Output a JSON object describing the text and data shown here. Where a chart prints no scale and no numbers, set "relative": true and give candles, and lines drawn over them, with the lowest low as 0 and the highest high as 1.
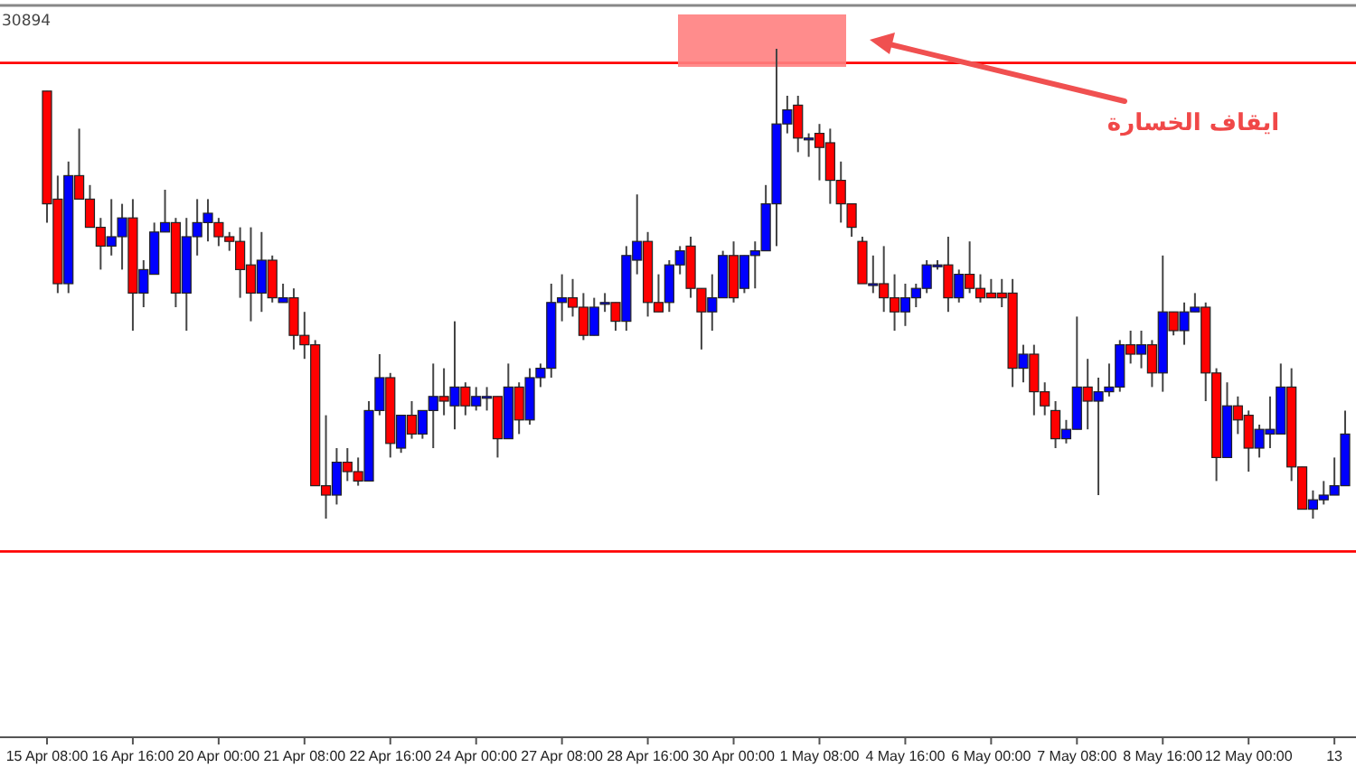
{
  "chart_data": {
    "type": "candlestick",
    "relative": true,
    "tick_labels": "x",
    "annotations": [
      "30894",
      "ايقاف الخسارة"
    ],
    "ref_lines": [
      {
        "axis": "y",
        "value": 0.97,
        "color": "#ff0000",
        "line_style": "solid"
      },
      {
        "axis": "y",
        "value": -0.07,
        "color": "#ff0000",
        "line_style": "solid"
      }
    ],
    "categories": [
      "15 Apr 08:00",
      null,
      null,
      null,
      null,
      null,
      null,
      null,
      "16 Apr 16:00",
      null,
      null,
      null,
      null,
      null,
      null,
      null,
      "20 Apr 00:00",
      null,
      null,
      null,
      null,
      null,
      null,
      null,
      "21 Apr 08:00",
      null,
      null,
      null,
      null,
      null,
      null,
      null,
      "22 Apr 16:00",
      null,
      null,
      null,
      null,
      null,
      null,
      null,
      "24 Apr 00:00",
      null,
      null,
      null,
      null,
      null,
      null,
      null,
      "27 Apr 08:00",
      null,
      null,
      null,
      null,
      null,
      null,
      null,
      "28 Apr 16:00",
      null,
      null,
      null,
      null,
      null,
      null,
      null,
      "30 Apr 00:00",
      null,
      null,
      null,
      null,
      null,
      null,
      null,
      "1 May 08:00",
      null,
      null,
      null,
      null,
      null,
      null,
      null,
      "4 May 16:00",
      null,
      null,
      null,
      null,
      null,
      null,
      null,
      "6 May 00:00",
      null,
      null,
      null,
      null,
      null,
      null,
      null,
      "7 May 08:00",
      null,
      null,
      null,
      null,
      null,
      null,
      null,
      "8 May 16:00",
      null,
      null,
      null,
      null,
      null,
      null,
      null,
      "12 May 00:00",
      null,
      null,
      null,
      null,
      null,
      null,
      null,
      "13",
      null
    ],
    "ohlc": [
      [
        0.91,
        0.91,
        0.63,
        0.67
      ],
      [
        0.68,
        0.73,
        0.48,
        0.5
      ],
      [
        0.5,
        0.76,
        0.48,
        0.73
      ],
      [
        0.73,
        0.83,
        0.68,
        0.68
      ],
      [
        0.68,
        0.71,
        0.62,
        0.62
      ],
      [
        0.62,
        0.64,
        0.53,
        0.58
      ],
      [
        0.58,
        0.68,
        0.56,
        0.6
      ],
      [
        0.6,
        0.67,
        0.53,
        0.64
      ],
      [
        0.64,
        0.68,
        0.4,
        0.48
      ],
      [
        0.48,
        0.55,
        0.45,
        0.53
      ],
      [
        0.52,
        0.63,
        0.52,
        0.61
      ],
      [
        0.61,
        0.7,
        0.61,
        0.63
      ],
      [
        0.63,
        0.64,
        0.45,
        0.48
      ],
      [
        0.48,
        0.64,
        0.4,
        0.6
      ],
      [
        0.6,
        0.68,
        0.56,
        0.63
      ],
      [
        0.63,
        0.68,
        0.59,
        0.65
      ],
      [
        0.63,
        0.64,
        0.58,
        0.6
      ],
      [
        0.6,
        0.61,
        0.57,
        0.59
      ],
      [
        0.59,
        0.62,
        0.47,
        0.53
      ],
      [
        0.54,
        0.62,
        0.42,
        0.48
      ],
      [
        0.48,
        0.61,
        0.44,
        0.55
      ],
      [
        0.55,
        0.56,
        0.46,
        0.47
      ],
      [
        0.46,
        0.5,
        0.46,
        0.47
      ],
      [
        0.47,
        0.49,
        0.36,
        0.39
      ],
      [
        0.39,
        0.44,
        0.34,
        0.37
      ],
      [
        0.37,
        0.38,
        0.07,
        0.07
      ],
      [
        0.07,
        0.22,
        0.0,
        0.05
      ],
      [
        0.05,
        0.15,
        0.03,
        0.12
      ],
      [
        0.12,
        0.15,
        0.08,
        0.1
      ],
      [
        0.1,
        0.13,
        0.07,
        0.08
      ],
      [
        0.08,
        0.25,
        0.08,
        0.23
      ],
      [
        0.23,
        0.35,
        0.22,
        0.3
      ],
      [
        0.3,
        0.31,
        0.13,
        0.16
      ],
      [
        0.15,
        0.22,
        0.14,
        0.22
      ],
      [
        0.22,
        0.25,
        0.17,
        0.18
      ],
      [
        0.18,
        0.23,
        0.17,
        0.23
      ],
      [
        0.23,
        0.33,
        0.15,
        0.26
      ],
      [
        0.26,
        0.32,
        0.22,
        0.25
      ],
      [
        0.24,
        0.42,
        0.19,
        0.28
      ],
      [
        0.28,
        0.29,
        0.22,
        0.24
      ],
      [
        0.24,
        0.28,
        0.23,
        0.26
      ],
      [
        0.26,
        0.28,
        0.23,
        0.26
      ],
      [
        0.26,
        0.26,
        0.13,
        0.17
      ],
      [
        0.17,
        0.33,
        0.17,
        0.28
      ],
      [
        0.28,
        0.29,
        0.18,
        0.21
      ],
      [
        0.21,
        0.32,
        0.2,
        0.3
      ],
      [
        0.3,
        0.33,
        0.28,
        0.32
      ],
      [
        0.32,
        0.5,
        0.3,
        0.46
      ],
      [
        0.46,
        0.52,
        0.42,
        0.47
      ],
      [
        0.47,
        0.51,
        0.43,
        0.45
      ],
      [
        0.45,
        0.48,
        0.38,
        0.39
      ],
      [
        0.39,
        0.47,
        0.39,
        0.45
      ],
      [
        0.46,
        0.48,
        0.44,
        0.46
      ],
      [
        0.46,
        0.46,
        0.4,
        0.42
      ],
      [
        0.42,
        0.58,
        0.4,
        0.56
      ],
      [
        0.55,
        0.69,
        0.52,
        0.59
      ],
      [
        0.59,
        0.61,
        0.43,
        0.46
      ],
      [
        0.46,
        0.52,
        0.44,
        0.44
      ],
      [
        0.46,
        0.55,
        0.44,
        0.54
      ],
      [
        0.54,
        0.58,
        0.52,
        0.57
      ],
      [
        0.58,
        0.6,
        0.47,
        0.49
      ],
      [
        0.49,
        0.49,
        0.36,
        0.44
      ],
      [
        0.44,
        0.52,
        0.4,
        0.47
      ],
      [
        0.47,
        0.57,
        0.47,
        0.56
      ],
      [
        0.56,
        0.59,
        0.46,
        0.47
      ],
      [
        0.49,
        0.56,
        0.48,
        0.56
      ],
      [
        0.56,
        0.59,
        0.49,
        0.57
      ],
      [
        0.57,
        0.71,
        0.57,
        0.67
      ],
      [
        0.67,
        1.0,
        0.58,
        0.84
      ],
      [
        0.84,
        0.9,
        0.82,
        0.87
      ],
      [
        0.88,
        0.9,
        0.78,
        0.81
      ],
      [
        0.81,
        0.82,
        0.77,
        0.81
      ],
      [
        0.82,
        0.84,
        0.72,
        0.79
      ],
      [
        0.8,
        0.83,
        0.67,
        0.72
      ],
      [
        0.72,
        0.76,
        0.63,
        0.67
      ],
      [
        0.67,
        0.67,
        0.6,
        0.62
      ],
      [
        0.59,
        0.6,
        0.5,
        0.5
      ],
      [
        0.5,
        0.56,
        0.48,
        0.5
      ],
      [
        0.5,
        0.58,
        0.44,
        0.47
      ],
      [
        0.47,
        0.52,
        0.4,
        0.44
      ],
      [
        0.44,
        0.5,
        0.41,
        0.47
      ],
      [
        0.47,
        0.5,
        0.45,
        0.49
      ],
      [
        0.49,
        0.55,
        0.48,
        0.54
      ],
      [
        0.54,
        0.55,
        0.53,
        0.54
      ],
      [
        0.54,
        0.6,
        0.44,
        0.47
      ],
      [
        0.47,
        0.53,
        0.46,
        0.52
      ],
      [
        0.52,
        0.59,
        0.48,
        0.49
      ],
      [
        0.49,
        0.52,
        0.46,
        0.47
      ],
      [
        0.48,
        0.51,
        0.47,
        0.47
      ],
      [
        0.48,
        0.51,
        0.45,
        0.47
      ],
      [
        0.48,
        0.51,
        0.28,
        0.32
      ],
      [
        0.32,
        0.37,
        0.29,
        0.35
      ],
      [
        0.35,
        0.37,
        0.22,
        0.27
      ],
      [
        0.27,
        0.29,
        0.22,
        0.24
      ],
      [
        0.23,
        0.25,
        0.15,
        0.17
      ],
      [
        0.17,
        0.21,
        0.16,
        0.19
      ],
      [
        0.19,
        0.43,
        0.19,
        0.28
      ],
      [
        0.28,
        0.34,
        0.19,
        0.25
      ],
      [
        0.25,
        0.3,
        0.05,
        0.27
      ],
      [
        0.27,
        0.33,
        0.26,
        0.28
      ],
      [
        0.28,
        0.38,
        0.27,
        0.37
      ],
      [
        0.37,
        0.4,
        0.33,
        0.35
      ],
      [
        0.35,
        0.4,
        0.32,
        0.37
      ],
      [
        0.37,
        0.38,
        0.28,
        0.31
      ],
      [
        0.31,
        0.56,
        0.27,
        0.44
      ],
      [
        0.44,
        0.44,
        0.39,
        0.4
      ],
      [
        0.4,
        0.46,
        0.37,
        0.44
      ],
      [
        0.44,
        0.48,
        0.44,
        0.45
      ],
      [
        0.45,
        0.46,
        0.25,
        0.31
      ],
      [
        0.31,
        0.32,
        0.08,
        0.13
      ],
      [
        0.13,
        0.29,
        0.13,
        0.24
      ],
      [
        0.24,
        0.26,
        0.18,
        0.21
      ],
      [
        0.22,
        0.23,
        0.1,
        0.15
      ],
      [
        0.15,
        0.2,
        0.13,
        0.19
      ],
      [
        0.18,
        0.26,
        0.15,
        0.19
      ],
      [
        0.18,
        0.33,
        0.18,
        0.28
      ],
      [
        0.28,
        0.32,
        0.08,
        0.11
      ],
      [
        0.11,
        0.11,
        0.02,
        0.02
      ],
      [
        0.02,
        0.06,
        0.0,
        0.04
      ],
      [
        0.04,
        0.08,
        0.03,
        0.05
      ],
      [
        0.05,
        0.13,
        0.05,
        0.07
      ],
      [
        0.07,
        0.23,
        0.07,
        0.18
      ]
    ],
    "colors": [
      "#ff0000",
      "#ff0000",
      "#0000ff",
      "#ff0000",
      "#ff0000",
      "#ff0000",
      "#0000ff",
      "#0000ff",
      "#ff0000",
      "#0000ff",
      "#0000ff",
      "#0000ff",
      "#ff0000",
      "#0000ff",
      "#0000ff",
      "#0000ff",
      "#ff0000",
      "#ff0000",
      "#ff0000",
      "#ff0000",
      "#0000ff",
      "#ff0000",
      "#0000ff",
      "#ff0000",
      "#ff0000",
      "#ff0000",
      "#ff0000",
      "#0000ff",
      "#ff0000",
      "#ff0000",
      "#0000ff",
      "#0000ff",
      "#ff0000",
      "#0000ff",
      "#ff0000",
      "#0000ff",
      "#0000ff",
      "#ff0000",
      "#0000ff",
      "#ff0000",
      "#0000ff",
      "#0000ff",
      "#ff0000",
      "#0000ff",
      "#ff0000",
      "#0000ff",
      "#0000ff",
      "#0000ff",
      "#0000ff",
      "#ff0000",
      "#ff0000",
      "#0000ff",
      "#0000ff",
      "#ff0000",
      "#0000ff",
      "#0000ff",
      "#ff0000",
      "#ff0000",
      "#0000ff",
      "#0000ff",
      "#ff0000",
      "#ff0000",
      "#0000ff",
      "#0000ff",
      "#ff0000",
      "#0000ff",
      "#0000ff",
      "#0000ff",
      "#0000ff",
      "#0000ff",
      "#ff0000",
      "#0000ff",
      "#ff0000",
      "#ff0000",
      "#ff0000",
      "#ff0000",
      "#ff0000",
      "#0000ff",
      "#ff0000",
      "#ff0000",
      "#0000ff",
      "#0000ff",
      "#0000ff",
      "#0000ff",
      "#ff0000",
      "#0000ff",
      "#ff0000",
      "#ff0000",
      "#ff0000",
      "#ff0000",
      "#ff0000",
      "#0000ff",
      "#ff0000",
      "#ff0000",
      "#ff0000",
      "#0000ff",
      "#0000ff",
      "#ff0000",
      "#0000ff",
      "#0000ff",
      "#0000ff",
      "#ff0000",
      "#0000ff",
      "#ff0000",
      "#0000ff",
      "#ff0000",
      "#0000ff",
      "#0000ff",
      "#ff0000",
      "#ff0000",
      "#0000ff",
      "#ff0000",
      "#ff0000",
      "#0000ff",
      "#0000ff",
      "#0000ff",
      "#ff0000",
      "#ff0000",
      "#0000ff",
      "#0000ff",
      "#0000ff",
      "#0000ff"
    ]
  }
}
